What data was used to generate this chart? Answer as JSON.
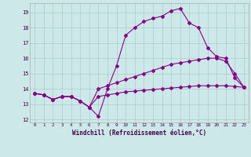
{
  "xlabel": "Windchill (Refroidissement éolien,°C)",
  "background_color": "#cce8e8",
  "grid_color": "#aacccc",
  "line_color": "#880088",
  "xlim": [
    -0.5,
    23.5
  ],
  "ylim": [
    11.8,
    19.6
  ],
  "yticks": [
    12,
    13,
    14,
    15,
    16,
    17,
    18,
    19
  ],
  "xticks": [
    0,
    1,
    2,
    3,
    4,
    5,
    6,
    7,
    8,
    9,
    10,
    11,
    12,
    13,
    14,
    15,
    16,
    17,
    18,
    19,
    20,
    21,
    22,
    23
  ],
  "line1_x": [
    0,
    1,
    2,
    3,
    4,
    5,
    6,
    7,
    8,
    9,
    10,
    11,
    12,
    13,
    14,
    15,
    16,
    17,
    18,
    19,
    20,
    21,
    22,
    23
  ],
  "line1_y": [
    13.7,
    13.6,
    13.3,
    13.5,
    13.5,
    13.2,
    12.8,
    12.2,
    14.0,
    15.5,
    17.5,
    18.0,
    18.4,
    18.6,
    18.75,
    19.1,
    19.25,
    18.3,
    18.0,
    16.7,
    16.1,
    16.0,
    14.7,
    14.1
  ],
  "line2_x": [
    0,
    1,
    2,
    3,
    4,
    5,
    6,
    7,
    8,
    9,
    10,
    11,
    12,
    13,
    14,
    15,
    16,
    17,
    18,
    19,
    20,
    21,
    22,
    23
  ],
  "line2_y": [
    13.7,
    13.6,
    13.3,
    13.5,
    13.5,
    13.2,
    12.8,
    14.0,
    14.2,
    14.4,
    14.6,
    14.8,
    15.0,
    15.2,
    15.4,
    15.6,
    15.7,
    15.8,
    15.9,
    16.0,
    16.0,
    15.8,
    15.0,
    14.1
  ],
  "line3_x": [
    0,
    1,
    2,
    3,
    4,
    5,
    6,
    7,
    8,
    9,
    10,
    11,
    12,
    13,
    14,
    15,
    16,
    17,
    18,
    19,
    20,
    21,
    22,
    23
  ],
  "line3_y": [
    13.7,
    13.6,
    13.3,
    13.5,
    13.5,
    13.2,
    12.8,
    13.5,
    13.6,
    13.7,
    13.8,
    13.85,
    13.9,
    13.95,
    14.0,
    14.05,
    14.1,
    14.15,
    14.2,
    14.2,
    14.2,
    14.2,
    14.15,
    14.1
  ]
}
